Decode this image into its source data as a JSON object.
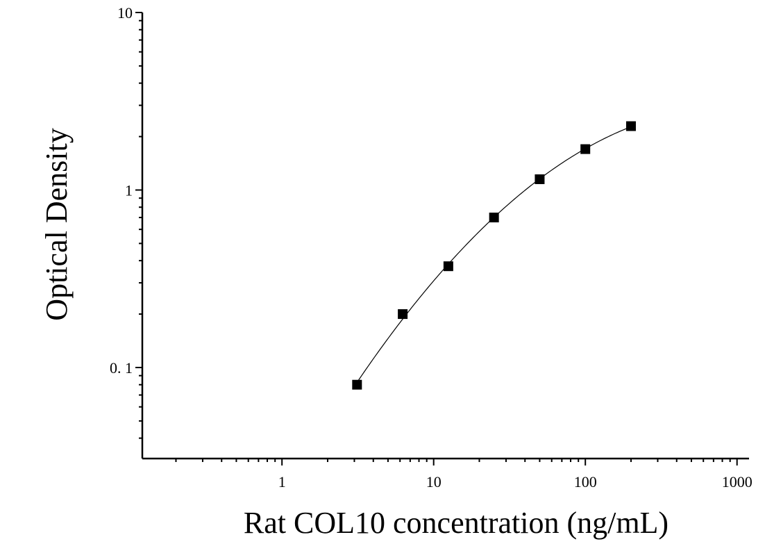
{
  "chart_data": {
    "type": "scatter",
    "xlabel": "Rat COL10 concentration (ng/mL)",
    "ylabel": "Optical Density",
    "x_scale": "log",
    "y_scale": "log",
    "xlim": [
      0.12,
      1200
    ],
    "ylim": [
      0.0307,
      10
    ],
    "x_ticks": [
      {
        "value": 1,
        "label": "1"
      },
      {
        "value": 10,
        "label": "10"
      },
      {
        "value": 100,
        "label": "100"
      },
      {
        "value": 1000,
        "label": "1000"
      }
    ],
    "y_ticks": [
      {
        "value": 10,
        "label": "10"
      },
      {
        "value": 1,
        "label": "1"
      },
      {
        "value": 0.1,
        "label": "0. 1"
      }
    ],
    "grid": false,
    "legend": "none",
    "series": [
      {
        "x": [
          3.125,
          6.25,
          12.5,
          25,
          50,
          100,
          200
        ],
        "y": [
          0.08,
          0.2,
          0.372,
          0.7,
          1.15,
          1.7,
          2.29
        ],
        "marker": "square",
        "color": "#000000",
        "fit_line": true
      }
    ]
  }
}
